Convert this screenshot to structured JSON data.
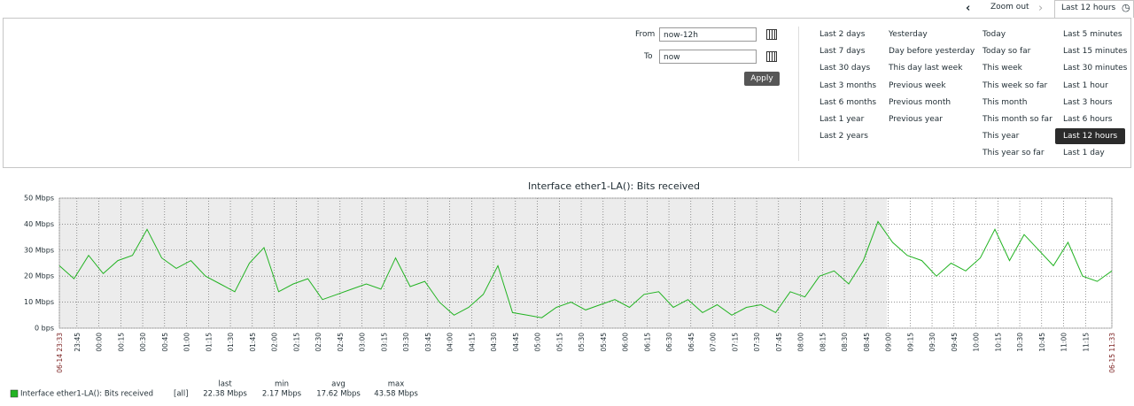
{
  "header": {
    "zoom_out": "Zoom out",
    "current_range": "Last 12 hours"
  },
  "filter": {
    "from_label": "From",
    "from_value": "now-12h",
    "to_label": "To",
    "to_value": "now",
    "apply": "Apply",
    "quick_ranges": [
      [
        "Last 2 days",
        "Last 7 days",
        "Last 30 days",
        "Last 3 months",
        "Last 6 months",
        "Last 1 year",
        "Last 2 years"
      ],
      [
        "Yesterday",
        "Day before yesterday",
        "This day last week",
        "Previous week",
        "Previous month",
        "Previous year"
      ],
      [
        "Today",
        "Today so far",
        "This week",
        "This week so far",
        "This month",
        "This month so far",
        "This year",
        "This year so far"
      ],
      [
        "Last 5 minutes",
        "Last 15 minutes",
        "Last 30 minutes",
        "Last 1 hour",
        "Last 3 hours",
        "Last 6 hours",
        "Last 12 hours",
        "Last 1 day"
      ]
    ]
  },
  "chart_data": {
    "type": "line",
    "title": "Interface ether1-LA(): Bits received",
    "x": [
      "06-14 23:33",
      "06-14 23:43",
      "06-14 23:53",
      "06-15 00:03",
      "06-15 00:13",
      "06-15 00:23",
      "06-15 00:33",
      "06-15 00:43",
      "06-15 00:53",
      "06-15 01:03",
      "06-15 01:13",
      "06-15 01:23",
      "06-15 01:33",
      "06-15 01:43",
      "06-15 01:53",
      "06-15 02:03",
      "06-15 02:13",
      "06-15 02:23",
      "06-15 02:33",
      "06-15 02:43",
      "06-15 02:53",
      "06-15 03:03",
      "06-15 03:13",
      "06-15 03:23",
      "06-15 03:33",
      "06-15 03:43",
      "06-15 03:53",
      "06-15 04:03",
      "06-15 04:13",
      "06-15 04:23",
      "06-15 04:33",
      "06-15 04:43",
      "06-15 04:53",
      "06-15 05:03",
      "06-15 05:13",
      "06-15 05:23",
      "06-15 05:33",
      "06-15 05:43",
      "06-15 05:53",
      "06-15 06:03",
      "06-15 06:13",
      "06-15 06:23",
      "06-15 06:33",
      "06-15 06:43",
      "06-15 06:53",
      "06-15 07:03",
      "06-15 07:13",
      "06-15 07:23",
      "06-15 07:33",
      "06-15 07:43",
      "06-15 07:53",
      "06-15 08:03",
      "06-15 08:13",
      "06-15 08:23",
      "06-15 08:33",
      "06-15 08:43",
      "06-15 08:53",
      "06-15 09:03",
      "06-15 09:13",
      "06-15 09:23",
      "06-15 09:33",
      "06-15 09:43",
      "06-15 09:53",
      "06-15 10:03",
      "06-15 10:13",
      "06-15 10:23",
      "06-15 10:33",
      "06-15 10:43",
      "06-15 10:53",
      "06-15 11:03",
      "06-15 11:13",
      "06-15 11:23",
      "06-15 11:33"
    ],
    "series": [
      {
        "name": "Interface ether1-LA(): Bits received",
        "color": "#22b322",
        "values": [
          24,
          19,
          28,
          21,
          26,
          28,
          38,
          27,
          23,
          26,
          20,
          17,
          14,
          25,
          31,
          14,
          17,
          19,
          11,
          13,
          15,
          17,
          15,
          27,
          16,
          18,
          10,
          5,
          8,
          13,
          24,
          6,
          5,
          4,
          8,
          10,
          7,
          9,
          11,
          8,
          13,
          14,
          8,
          11,
          6,
          9,
          5,
          8,
          9,
          6,
          14,
          12,
          20,
          22,
          17,
          26,
          41,
          33,
          28,
          26,
          20,
          25,
          22,
          27,
          38,
          26,
          36,
          30,
          24,
          33,
          20,
          18,
          22
        ]
      }
    ],
    "xlim": [
      "06-14 23:33",
      "06-15 11:33"
    ],
    "xticks": [
      "06-14 23:33",
      {
        "value": "06-14 23:45",
        "label": "23:45"
      },
      {
        "value": "06-15 00:00",
        "label": "00:00"
      },
      {
        "value": "06-15 00:15",
        "label": "00:15"
      },
      {
        "value": "06-15 00:30",
        "label": "00:30"
      },
      {
        "value": "06-15 00:45",
        "label": "00:45"
      },
      {
        "value": "06-15 01:00",
        "label": "01:00"
      },
      {
        "value": "06-15 01:15",
        "label": "01:15"
      },
      {
        "value": "06-15 01:30",
        "label": "01:30"
      },
      {
        "value": "06-15 01:45",
        "label": "01:45"
      },
      {
        "value": "06-15 02:00",
        "label": "02:00"
      },
      {
        "value": "06-15 02:15",
        "label": "02:15"
      },
      {
        "value": "06-15 02:30",
        "label": "02:30"
      },
      {
        "value": "06-15 02:45",
        "label": "02:45"
      },
      {
        "value": "06-15 03:00",
        "label": "03:00"
      },
      {
        "value": "06-15 03:15",
        "label": "03:15"
      },
      {
        "value": "06-15 03:30",
        "label": "03:30"
      },
      {
        "value": "06-15 03:45",
        "label": "03:45"
      },
      {
        "value": "06-15 04:00",
        "label": "04:00"
      },
      {
        "value": "06-15 04:15",
        "label": "04:15"
      },
      {
        "value": "06-15 04:30",
        "label": "04:30"
      },
      {
        "value": "06-15 04:45",
        "label": "04:45"
      },
      {
        "value": "06-15 05:00",
        "label": "05:00"
      },
      {
        "value": "06-15 05:15",
        "label": "05:15"
      },
      {
        "value": "06-15 05:30",
        "label": "05:30"
      },
      {
        "value": "06-15 05:45",
        "label": "05:45"
      },
      {
        "value": "06-15 06:00",
        "label": "06:00"
      },
      {
        "value": "06-15 06:15",
        "label": "06:15"
      },
      {
        "value": "06-15 06:30",
        "label": "06:30"
      },
      {
        "value": "06-15 06:45",
        "label": "06:45"
      },
      {
        "value": "06-15 07:00",
        "label": "07:00"
      },
      {
        "value": "06-15 07:15",
        "label": "07:15"
      },
      {
        "value": "06-15 07:30",
        "label": "07:30"
      },
      {
        "value": "06-15 07:45",
        "label": "07:45"
      },
      {
        "value": "06-15 08:00",
        "label": "08:00"
      },
      {
        "value": "06-15 08:15",
        "label": "08:15"
      },
      {
        "value": "06-15 08:30",
        "label": "08:30"
      },
      {
        "value": "06-15 08:45",
        "label": "08:45"
      },
      {
        "value": "06-15 09:00",
        "label": "09:00"
      },
      {
        "value": "06-15 09:15",
        "label": "09:15"
      },
      {
        "value": "06-15 09:30",
        "label": "09:30"
      },
      {
        "value": "06-15 09:45",
        "label": "09:45"
      },
      {
        "value": "06-15 10:00",
        "label": "10:00"
      },
      {
        "value": "06-15 10:15",
        "label": "10:15"
      },
      {
        "value": "06-15 10:30",
        "label": "10:30"
      },
      {
        "value": "06-15 10:45",
        "label": "10:45"
      },
      {
        "value": "06-15 11:00",
        "label": "11:00"
      },
      {
        "value": "06-15 11:15",
        "label": "11:15"
      },
      "06-15 11:33"
    ],
    "ylim": [
      0,
      50
    ],
    "yticks": [
      {
        "value": 0,
        "label": "0 bps"
      },
      {
        "value": 10,
        "label": "10 Mbps"
      },
      {
        "value": 20,
        "label": "20 Mbps"
      },
      {
        "value": 30,
        "label": "30 Mbps"
      },
      {
        "value": 40,
        "label": "40 Mbps"
      },
      {
        "value": 50,
        "label": "50 Mbps"
      }
    ],
    "grid": true
  },
  "legend": {
    "scope": "[all]",
    "columns": [
      "last",
      "min",
      "avg",
      "max"
    ],
    "values": [
      "22.38 Mbps",
      "2.17 Mbps",
      "17.62 Mbps",
      "43.58 Mbps"
    ]
  }
}
